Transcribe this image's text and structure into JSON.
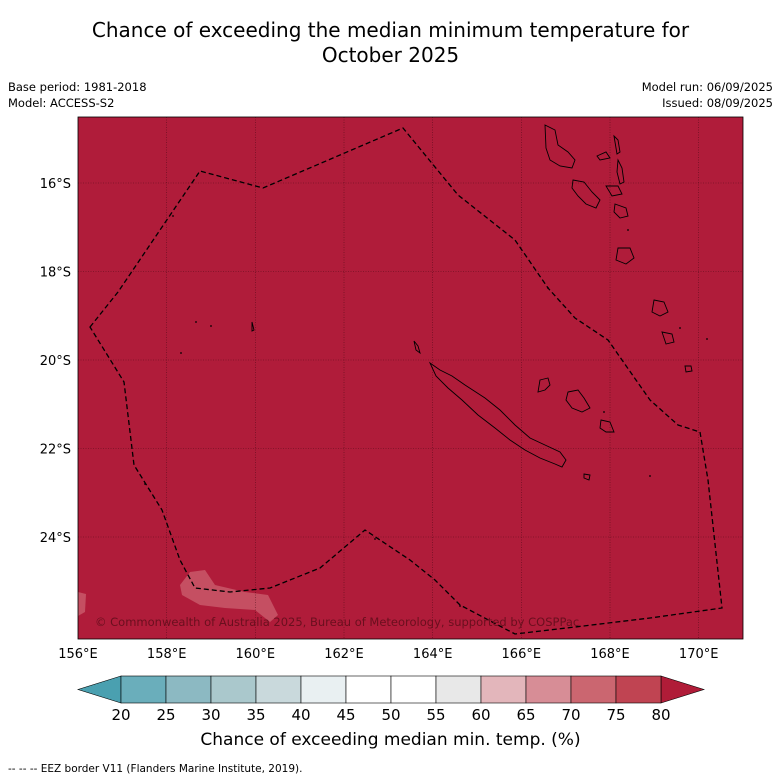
{
  "title_line1": "Chance of exceeding the median minimum temperature for",
  "title_line2": "October 2025",
  "base_period": "Base period: 1981-2018",
  "model": "Model: ACCESS-S2",
  "model_run": "Model run: 06/09/2025",
  "issued": "Issued: 08/09/2025",
  "copyright": "© Commonwealth of Australia 2025, Bureau of Meteorology, supported by COSPPac",
  "lat_labels": [
    "16°S",
    "18°S",
    "20°S",
    "22°S",
    "24°S"
  ],
  "lon_labels": [
    "156°E",
    "158°E",
    "160°E",
    "162°E",
    "164°E",
    "166°E",
    "168°E",
    "170°E"
  ],
  "colorbar": {
    "label": "Chance of exceeding median min. temp. (%)",
    "ticks": [
      "20",
      "25",
      "30",
      "35",
      "40",
      "45",
      "50",
      "55",
      "60",
      "65",
      "70",
      "75",
      "80"
    ],
    "colors": [
      "#4aa0b0",
      "#6aaebb",
      "#8cb9c2",
      "#aac8cc",
      "#c9d9dc",
      "#e9f0f2",
      "#ffffff",
      "#ffffff",
      "#e8e8e8",
      "#e3b6bb",
      "#d78d96",
      "#cb6670",
      "#c04452",
      "#b01c38"
    ],
    "low_color": "#4aa0b0",
    "high_color": "#b01c38"
  },
  "map_fill_color": "#b01c3a",
  "legend_footnote": "--  --  -- EEZ border V11 (Flanders Marine Institute, 2019)."
}
